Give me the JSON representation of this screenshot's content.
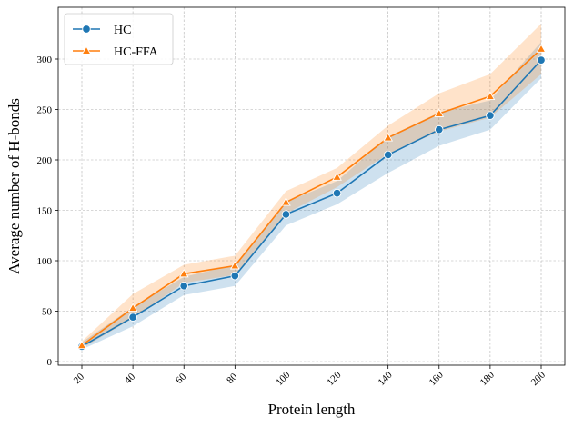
{
  "chart_data": {
    "type": "line",
    "xlabel": "Protein length",
    "ylabel": "Average number of H-bonds",
    "x": [
      20,
      40,
      60,
      80,
      100,
      120,
      140,
      160,
      180,
      200
    ],
    "xlim": [
      20,
      200
    ],
    "ylim": [
      0,
      340
    ],
    "yticks": [
      0,
      50,
      100,
      150,
      200,
      250,
      300
    ],
    "grid": true,
    "legend_position": "top-left",
    "series": [
      {
        "name": "HC",
        "color": "#1f77b4",
        "marker": "circle",
        "values": [
          15,
          44,
          75,
          85,
          146,
          167,
          205,
          230,
          244,
          299
        ],
        "lower": [
          12,
          35,
          66,
          75,
          135,
          156,
          187,
          214,
          230,
          281
        ],
        "upper": [
          19,
          54,
          84,
          96,
          158,
          179,
          223,
          247,
          259,
          317
        ]
      },
      {
        "name": "HC-FFA",
        "color": "#ff7f0e",
        "marker": "triangle",
        "values": [
          16,
          53,
          87,
          95,
          158,
          183,
          222,
          246,
          263,
          310
        ],
        "lower": [
          13,
          43,
          78,
          86,
          147,
          173,
          206,
          228,
          242,
          285
        ],
        "upper": [
          20,
          67,
          96,
          105,
          169,
          192,
          234,
          266,
          285,
          335
        ]
      }
    ]
  }
}
